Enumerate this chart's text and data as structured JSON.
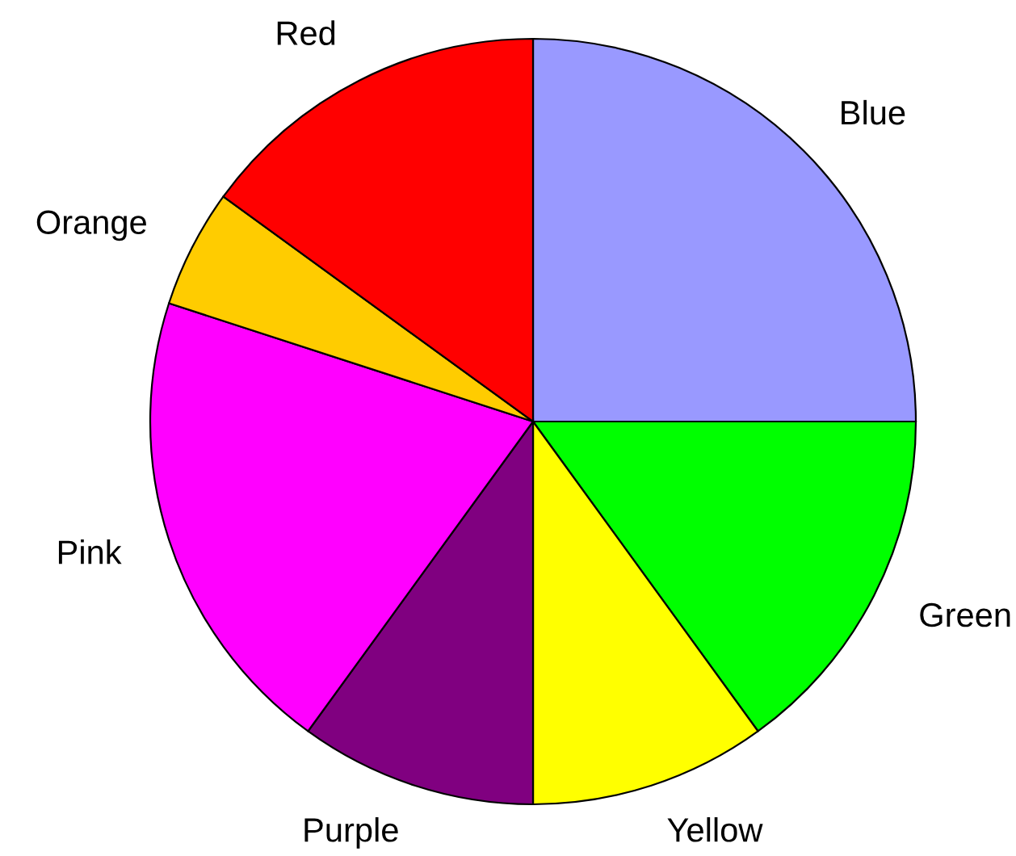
{
  "chart_data": {
    "type": "pie",
    "categories": [
      "Blue",
      "Green",
      "Yellow",
      "Purple",
      "Pink",
      "Orange",
      "Red"
    ],
    "values": [
      25,
      15,
      10,
      10,
      20,
      5,
      15
    ],
    "colors": [
      "#9999ff",
      "#00ff00",
      "#ffff00",
      "#800080",
      "#ff00ff",
      "#ffcc00",
      "#ff0000"
    ]
  }
}
